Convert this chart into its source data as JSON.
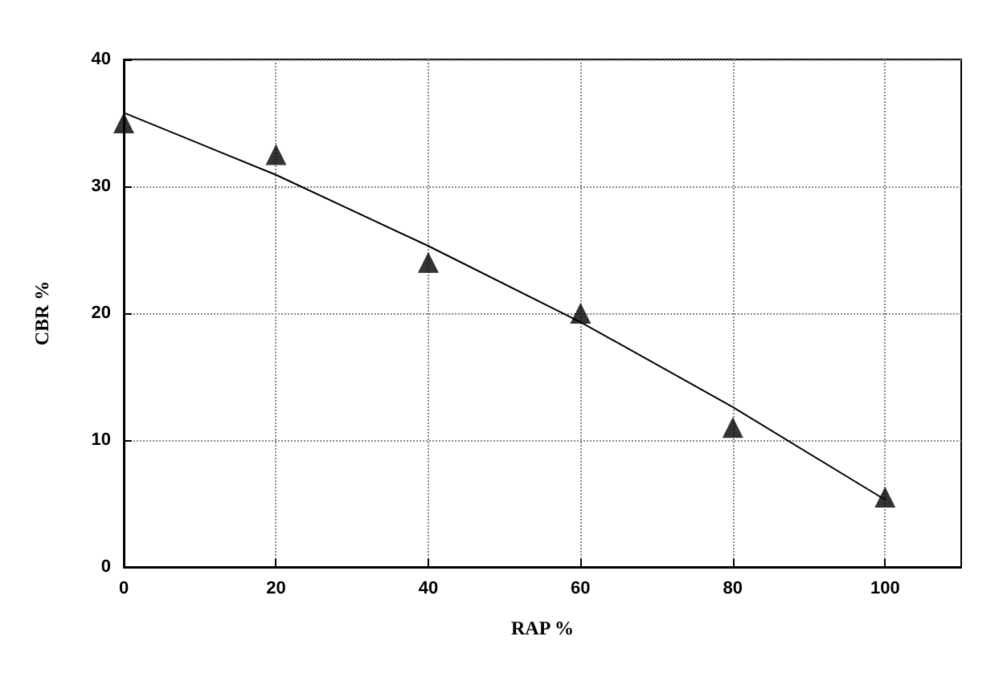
{
  "chart_data": {
    "type": "scatter",
    "xlabel": "RAP %",
    "ylabel": "CBR %",
    "xlim": [
      0,
      110
    ],
    "xticks": [
      0,
      20,
      40,
      60,
      80,
      100
    ],
    "ylim": [
      0,
      40
    ],
    "yticks": [
      0,
      10,
      20,
      30,
      40
    ],
    "grid": true,
    "marker": "triangle",
    "series": [
      {
        "color": "#000000",
        "x": [
          0,
          20,
          40,
          60,
          80,
          100
        ],
        "values": [
          35,
          32.5,
          24,
          20,
          11,
          5.5
        ]
      },
      {
        "type": "line",
        "color": "#000000",
        "marker": "none",
        "line_style": "solid",
        "x": [
          0,
          20,
          40,
          60,
          80,
          100
        ],
        "values": [
          35.8,
          30.9,
          25.3,
          19.3,
          12.6,
          5.3
        ]
      }
    ]
  }
}
